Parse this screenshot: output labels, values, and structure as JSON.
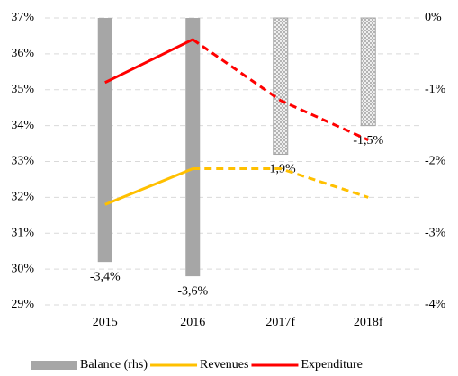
{
  "chart_data": {
    "type": "bar_line",
    "categories": [
      "2015",
      "2016",
      "2017f",
      "2018f"
    ],
    "forecast_from": 2,
    "series": [
      {
        "name": "Balance (rhs)",
        "type": "bar",
        "axis": "y2",
        "color": "#a6a6a6",
        "values": [
          -3.4,
          -3.6,
          -1.9,
          -1.5
        ],
        "value_labels": [
          "-3,4%",
          "-3,6%",
          "-1,9%",
          "-1,5%"
        ]
      },
      {
        "name": "Revenues",
        "type": "line",
        "color": "#ffc000",
        "values": [
          31.8,
          32.8,
          32.8,
          32.0
        ]
      },
      {
        "name": "Expenditure",
        "type": "line",
        "color": "#ff0000",
        "values": [
          35.2,
          36.4,
          34.7,
          33.6
        ]
      }
    ],
    "ylim": [
      29,
      37
    ],
    "yticks": [
      {
        "value": 29,
        "label": "29%"
      },
      {
        "value": 30,
        "label": "30%"
      },
      {
        "value": 31,
        "label": "31%"
      },
      {
        "value": 32,
        "label": "32%"
      },
      {
        "value": 33,
        "label": "33%"
      },
      {
        "value": 34,
        "label": "34%"
      },
      {
        "value": 35,
        "label": "35%"
      },
      {
        "value": 36,
        "label": "36%"
      },
      {
        "value": 37,
        "label": "37%"
      }
    ],
    "y2lim": [
      -4,
      0
    ],
    "y2ticks": [
      {
        "value": -4,
        "label": "-4%"
      },
      {
        "value": -3,
        "label": "-3%"
      },
      {
        "value": -2,
        "label": "-2%"
      },
      {
        "value": -1,
        "label": "-1%"
      },
      {
        "value": 0,
        "label": "0%"
      }
    ],
    "grid": true,
    "legend": "bottom"
  }
}
